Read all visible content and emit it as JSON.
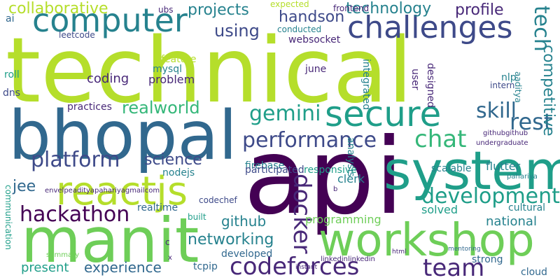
{
  "words": {
    "technical": "technical",
    "api": "api",
    "bhopal": "bhopal",
    "manit": "manit",
    "system": "system",
    "workshop": "workshop",
    "secure": "secure",
    "computer": "computer",
    "challenges": "challenges",
    "reactjs": "reactjs",
    "codeforces": "codeforces",
    "team": "team",
    "hackathon": "hackathon",
    "platform": "platform",
    "development": "development",
    "docker": "docker",
    "performance": "performance",
    "chat": "chat",
    "rest": "rest",
    "gemini": "gemini",
    "skill": "skill",
    "tech": "tech",
    "competitive": "competitive",
    "collaborative": "collaborative",
    "projects": "projects",
    "technology": "technology",
    "profile": "profile",
    "handson": "handson",
    "using": "using",
    "realworld": "realworld",
    "science": "science",
    "jee": "jee",
    "networking": "networking",
    "github": "github",
    "experience": "experience",
    "present": "present",
    "coding": "coding",
    "problem": "problem",
    "mysql": "mysql",
    "feature": "feature",
    "practices": "practices",
    "nodejs": "nodejs",
    "firebase": "firebase",
    "clerk": "clerk",
    "responsive": "responsive",
    "participated": "participated",
    "scalable": "scalable",
    "flutter": "flutter",
    "national": "national",
    "cultural": "cultural",
    "solved": "solved",
    "programming": "programming",
    "developed": "developed",
    "cloud": "cloud",
    "strong": "strong",
    "tcpip": "tcpip",
    "realtime": "realtime",
    "built": "built",
    "websocket": "websocket",
    "conducted": "conducted",
    "june": "june",
    "frontend": "frontend",
    "expected": "expected",
    "ubs": "ubs",
    "ai": "ai",
    "leetcode": "leetcode",
    "dns": "dns",
    "roll": "roll",
    "nlp": "nlp",
    "integrated": "integrated",
    "analysis": "analysis",
    "designed": "designed",
    "user": "user",
    "intern": "intern",
    "codechef": "codechef",
    "communication": "communication",
    "email": "envelpeadityapahariyagmailcom",
    "linkedin": "linkedinlinkedin",
    "undergraduate": "undergraduate",
    "githubgithub": "githubgithub",
    "pahariya": "pahariya",
    "aaditya": "aaditya",
    "c": "c",
    "b": "b",
    "summary": "summary",
    "x": "x",
    "mentoring": "mentoring",
    "instant": "instant",
    "html": "html"
  }
}
